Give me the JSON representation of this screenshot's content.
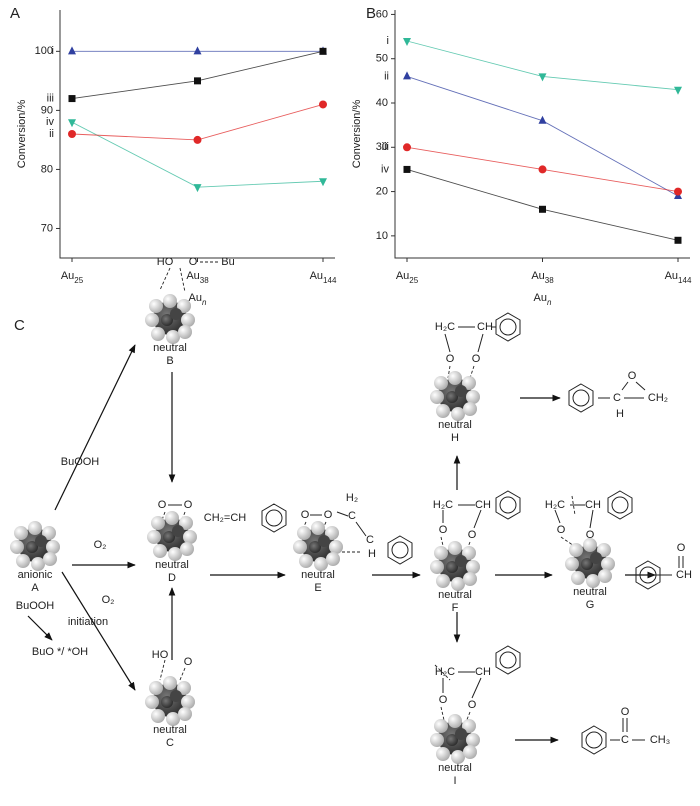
{
  "chart_data": [
    {
      "type": "line",
      "panel_label": "A",
      "ylabel": "Conversion/%",
      "xlabel": "Aun",
      "categories": [
        "Au25",
        "Au38",
        "Au144"
      ],
      "ylim": [
        65,
        107
      ],
      "yticks": [
        70,
        80,
        90,
        100
      ],
      "series": [
        {
          "name": "i",
          "color": "#3040a0",
          "marker": "triangle",
          "values": [
            100,
            100,
            100
          ]
        },
        {
          "name": "iii",
          "color": "#111111",
          "marker": "square",
          "values": [
            92,
            95,
            100
          ]
        },
        {
          "name": "iv",
          "color": "#30b898",
          "marker": "triangle-down",
          "values": [
            88,
            77,
            78
          ]
        },
        {
          "name": "ii",
          "color": "#e02828",
          "marker": "circle",
          "values": [
            86,
            85,
            91
          ]
        }
      ]
    },
    {
      "type": "line",
      "panel_label": "B",
      "ylabel": "Conversion/%",
      "xlabel": "Aun",
      "categories": [
        "Au25",
        "Au38",
        "Au144"
      ],
      "ylim": [
        5,
        61
      ],
      "yticks": [
        10,
        20,
        30,
        40,
        50,
        60
      ],
      "series": [
        {
          "name": "i",
          "color": "#30b898",
          "marker": "triangle-down",
          "values": [
            54,
            46,
            43
          ]
        },
        {
          "name": "ii",
          "color": "#3040a0",
          "marker": "triangle",
          "values": [
            46,
            36,
            19
          ]
        },
        {
          "name": "iii",
          "color": "#e02828",
          "marker": "circle",
          "values": [
            30,
            25,
            20
          ]
        },
        {
          "name": "iv",
          "color": "#111111",
          "marker": "square",
          "values": [
            25,
            16,
            9
          ]
        }
      ]
    }
  ],
  "diagram": {
    "panel_label": "C",
    "nodes": [
      {
        "state": "anionic",
        "label": "A"
      },
      {
        "state": "neutral",
        "label": "B"
      },
      {
        "state": "neutral",
        "label": "C"
      },
      {
        "state": "neutral",
        "label": "D"
      },
      {
        "state": "neutral",
        "label": "E"
      },
      {
        "state": "neutral",
        "label": "F"
      },
      {
        "state": "neutral",
        "label": "G"
      },
      {
        "state": "neutral",
        "label": "H"
      },
      {
        "state": "neutral",
        "label": "I"
      }
    ],
    "reagents": [
      "BuOOH",
      "O₂",
      "O₂",
      "BuOOH",
      "initiation",
      "BuO */ *OH"
    ],
    "atoms": [
      "HO",
      "O",
      "Bu",
      "O",
      "O",
      "CH₂=CH",
      "O",
      "O",
      "H₂",
      "C",
      "C",
      "H",
      "H₂C",
      "CH",
      "O",
      "O",
      "C",
      "O",
      "CH₂",
      "H",
      "H₂C",
      "CH",
      "O",
      "O",
      "H₂C",
      "CH",
      "O",
      "O",
      "O",
      "CH",
      "HO",
      "O",
      "H₂C",
      "CH",
      "O",
      "O",
      "O",
      "C",
      "CH₃"
    ]
  }
}
